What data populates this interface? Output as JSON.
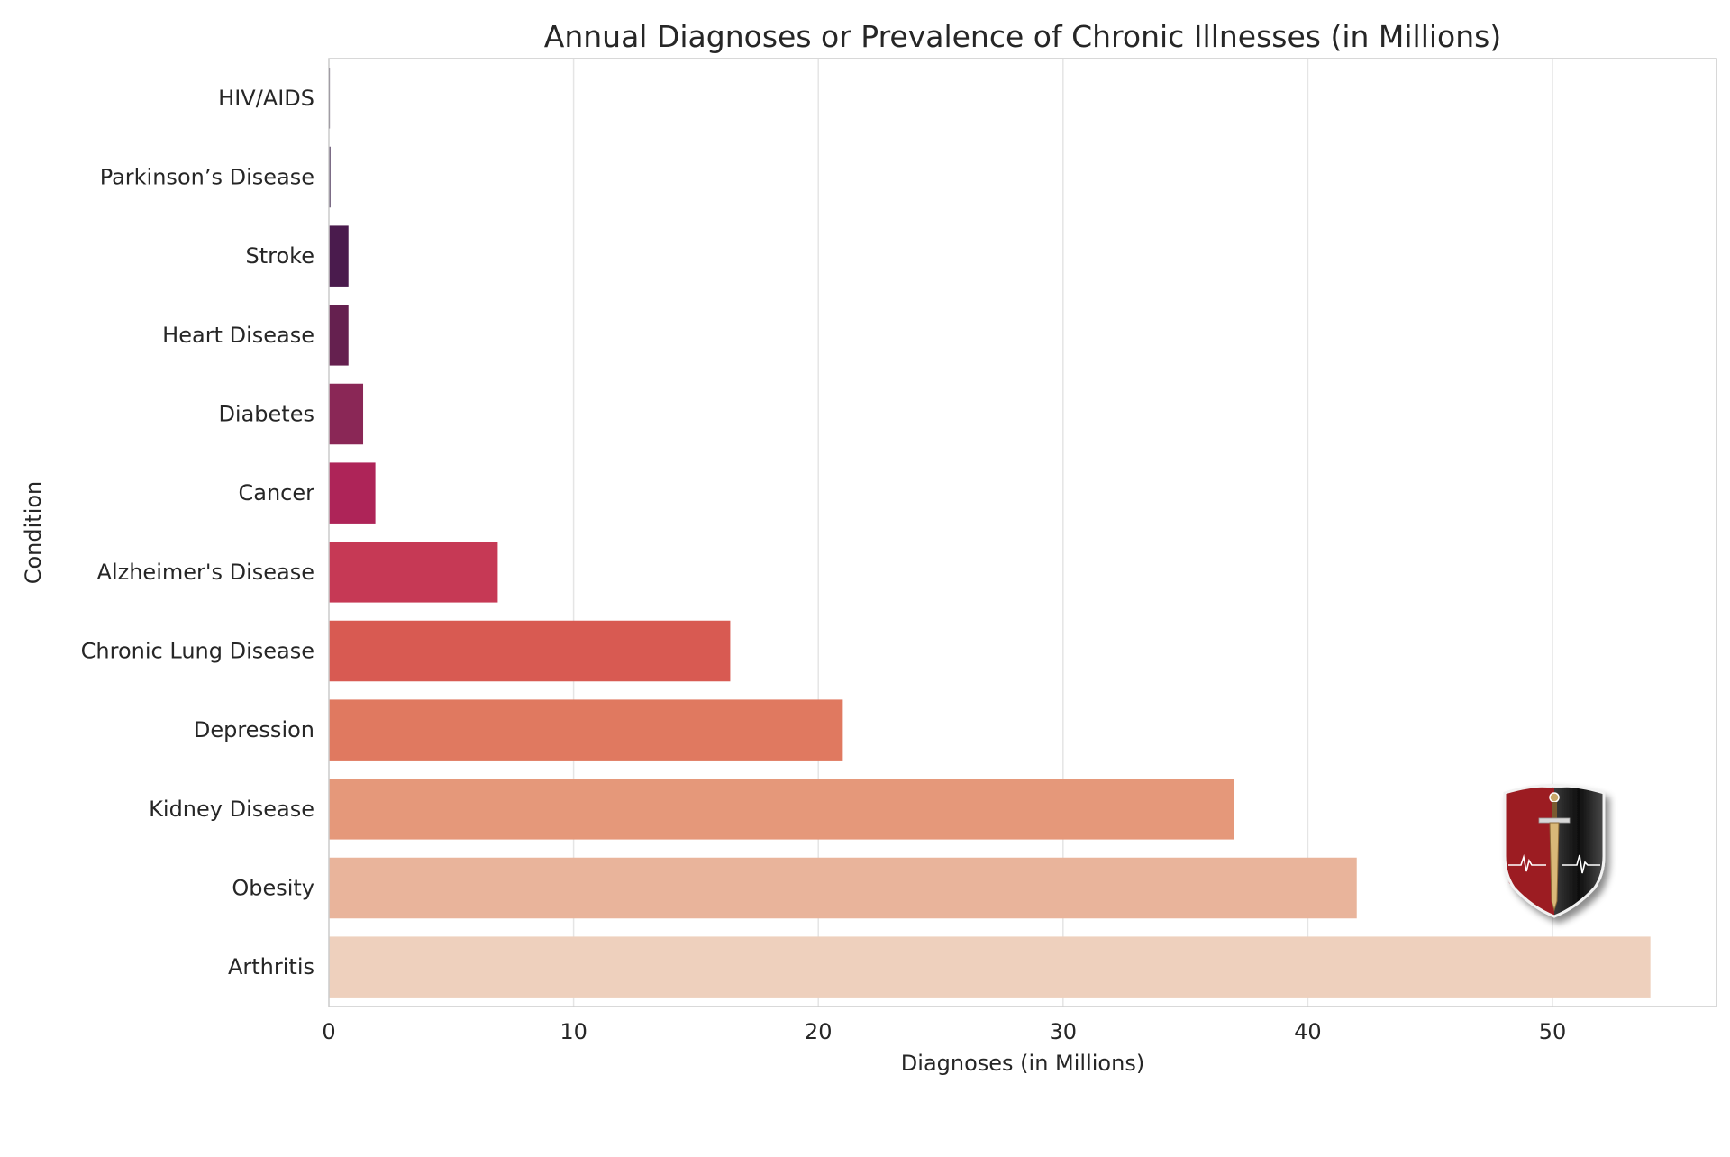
{
  "chart_data": {
    "type": "bar",
    "orientation": "horizontal",
    "title": "Annual Diagnoses or Prevalence of Chronic Illnesses (in Millions)",
    "xlabel": "Diagnoses (in Millions)",
    "ylabel": "Condition",
    "xlim": [
      0,
      56.7
    ],
    "x_ticks": [
      "0",
      "10",
      "20",
      "30",
      "40",
      "50"
    ],
    "grid": "vertical",
    "categories": [
      "HIV/AIDS",
      "Parkinson’s Disease",
      "Stroke",
      "Heart Disease",
      "Diabetes",
      "Cancer",
      "Alzheimer's Disease",
      "Chronic Lung Disease",
      "Depression",
      "Kidney Disease",
      "Obesity",
      "Arthritis"
    ],
    "values": [
      0.04,
      0.06,
      0.8,
      0.8,
      1.4,
      1.9,
      6.9,
      16.4,
      21.0,
      37.0,
      42.0,
      54.0
    ],
    "colors": [
      "#1f0f2e",
      "#2f1640",
      "#4a1b4d",
      "#65204f",
      "#8a2756",
      "#ae2458",
      "#c63955",
      "#d85a52",
      "#e07960",
      "#e5987a",
      "#e9b49b",
      "#eed0bd"
    ]
  },
  "logo": {
    "name": "shield-with-sword-and-heartbeat",
    "colors": {
      "left": "#9c1f22",
      "right": "#1a1a1a",
      "blade": "#c9a86a"
    }
  }
}
